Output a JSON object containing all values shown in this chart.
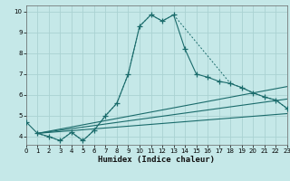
{
  "xlabel": "Humidex (Indice chaleur)",
  "background_color": "#c5e8e8",
  "grid_color": "#aad2d2",
  "line_color": "#1a6b6b",
  "xlim": [
    0,
    23
  ],
  "ylim": [
    3.6,
    10.3
  ],
  "xticks": [
    0,
    1,
    2,
    3,
    4,
    5,
    6,
    7,
    8,
    9,
    10,
    11,
    12,
    13,
    14,
    15,
    16,
    17,
    18,
    19,
    20,
    21,
    22,
    23
  ],
  "yticks": [
    4,
    5,
    6,
    7,
    8,
    9,
    10
  ],
  "curve1_x": [
    0,
    1,
    2,
    3,
    4,
    5,
    6,
    7,
    8,
    9,
    10,
    11,
    12,
    13,
    14,
    15,
    16,
    17,
    18,
    19,
    20,
    21,
    22,
    23
  ],
  "curve1_y": [
    4.7,
    4.15,
    4.0,
    3.8,
    4.2,
    3.8,
    4.3,
    5.0,
    5.6,
    7.0,
    9.3,
    9.85,
    9.55,
    9.85,
    8.2,
    7.0,
    6.85,
    6.65,
    6.55,
    6.35,
    6.1,
    5.9,
    5.75,
    5.35
  ],
  "curve2_x": [
    1,
    3,
    4,
    5,
    6,
    7,
    8,
    9,
    10,
    11,
    12,
    13,
    18,
    19,
    20,
    21,
    22,
    23
  ],
  "curve2_y": [
    4.15,
    3.8,
    4.2,
    3.8,
    4.3,
    5.0,
    5.6,
    7.0,
    9.3,
    9.85,
    9.55,
    9.85,
    6.55,
    6.35,
    6.1,
    5.9,
    5.75,
    5.35
  ],
  "line1_x": [
    1,
    23
  ],
  "line1_y": [
    4.15,
    5.1
  ],
  "line2_x": [
    1,
    23
  ],
  "line2_y": [
    4.15,
    5.8
  ],
  "line3_x": [
    1,
    23
  ],
  "line3_y": [
    4.15,
    6.4
  ]
}
